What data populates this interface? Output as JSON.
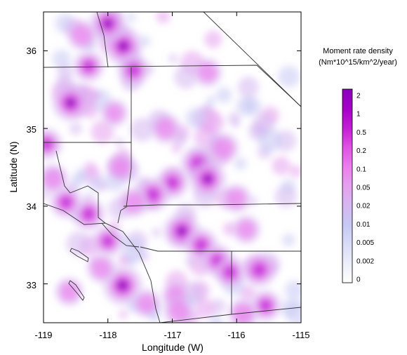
{
  "chart_data": {
    "type": "heatmap",
    "title": "",
    "xlabel": "Longitude (W)",
    "ylabel": "Latitude (N)",
    "xlim": [
      -119,
      -115
    ],
    "ylim": [
      32.5,
      36.5
    ],
    "x_ticks": [
      "-119",
      "-118",
      "-117",
      "-116",
      "-115"
    ],
    "y_ticks": [
      "33",
      "34",
      "35",
      "36"
    ],
    "legend": {
      "title_line1": "Moment rate density",
      "title_line2": "(Nm*10^15/km^2/year)",
      "placement": "right",
      "levels": [
        "2",
        "1",
        "0.5",
        "0.2",
        "0.1",
        "0.05",
        "0.02",
        "0.01",
        "0.005",
        "0.002",
        "0"
      ],
      "colors": [
        "#8a00b8",
        "#a400c6",
        "#c21ed4",
        "#e052e4",
        "#ec7cee",
        "#e6a0ee",
        "#d6b6f0",
        "#c6c8f4",
        "#d8dcf8",
        "#eceef9",
        "#ffffff"
      ]
    },
    "hotspots": [
      {
        "lon": -117.76,
        "lat": 36.06,
        "intensity": 0.9
      },
      {
        "lon": -118.0,
        "lat": 36.35,
        "intensity": 0.75
      },
      {
        "lon": -117.6,
        "lat": 35.75,
        "intensity": 0.55
      },
      {
        "lon": -118.58,
        "lat": 35.33,
        "intensity": 0.8
      },
      {
        "lon": -118.3,
        "lat": 35.8,
        "intensity": 0.5
      },
      {
        "lon": -118.4,
        "lat": 36.2,
        "intensity": 0.45
      },
      {
        "lon": -117.1,
        "lat": 35.0,
        "intensity": 0.45
      },
      {
        "lon": -116.45,
        "lat": 35.72,
        "intensity": 0.35
      },
      {
        "lon": -116.6,
        "lat": 34.55,
        "intensity": 0.7
      },
      {
        "lon": -116.45,
        "lat": 34.35,
        "intensity": 0.8
      },
      {
        "lon": -116.2,
        "lat": 34.75,
        "intensity": 0.45
      },
      {
        "lon": -117.0,
        "lat": 34.3,
        "intensity": 0.55
      },
      {
        "lon": -117.3,
        "lat": 34.15,
        "intensity": 0.65
      },
      {
        "lon": -117.6,
        "lat": 34.05,
        "intensity": 0.45
      },
      {
        "lon": -116.85,
        "lat": 33.68,
        "intensity": 0.8
      },
      {
        "lon": -116.55,
        "lat": 33.5,
        "intensity": 0.6
      },
      {
        "lon": -116.3,
        "lat": 33.3,
        "intensity": 0.55
      },
      {
        "lon": -116.1,
        "lat": 33.15,
        "intensity": 0.55
      },
      {
        "lon": -115.65,
        "lat": 33.18,
        "intensity": 0.65
      },
      {
        "lon": -115.55,
        "lat": 32.72,
        "intensity": 0.5
      },
      {
        "lon": -115.9,
        "lat": 32.62,
        "intensity": 0.45
      },
      {
        "lon": -117.77,
        "lat": 32.98,
        "intensity": 0.95
      },
      {
        "lon": -118.0,
        "lat": 33.55,
        "intensity": 0.5
      },
      {
        "lon": -118.3,
        "lat": 33.9,
        "intensity": 0.6
      },
      {
        "lon": -118.65,
        "lat": 34.05,
        "intensity": 0.55
      },
      {
        "lon": -118.85,
        "lat": 34.35,
        "intensity": 0.45
      },
      {
        "lon": -118.95,
        "lat": 34.8,
        "intensity": 0.5
      },
      {
        "lon": -118.1,
        "lat": 33.2,
        "intensity": 0.4
      },
      {
        "lon": -117.4,
        "lat": 32.75,
        "intensity": 0.35
      },
      {
        "lon": -116.95,
        "lat": 32.85,
        "intensity": 0.3
      },
      {
        "lon": -118.6,
        "lat": 32.9,
        "intensity": 0.35
      },
      {
        "lon": -117.9,
        "lat": 35.2,
        "intensity": 0.3
      },
      {
        "lon": -117.8,
        "lat": 34.5,
        "intensity": 0.4
      },
      {
        "lon": -116.0,
        "lat": 34.1,
        "intensity": 0.35
      },
      {
        "lon": -115.85,
        "lat": 33.7,
        "intensity": 0.35
      },
      {
        "lon": -116.9,
        "lat": 32.65,
        "intensity": 0.45
      }
    ]
  }
}
